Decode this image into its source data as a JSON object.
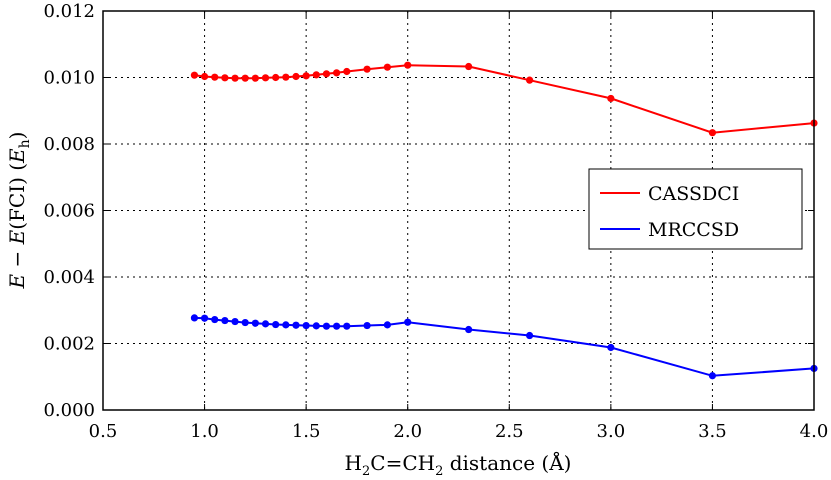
{
  "chart_data": {
    "type": "line",
    "title": "",
    "xlabel": "H₂C=CH₂ distance (Å)",
    "ylabel": "E − E(FCI) (Eₕ)",
    "xlim": [
      0.5,
      4.0
    ],
    "ylim": [
      0.0,
      0.012
    ],
    "xticks": [
      0.5,
      1.0,
      1.5,
      2.0,
      2.5,
      3.0,
      3.5,
      4.0
    ],
    "xtick_labels": [
      "0.5",
      "1.0",
      "1.5",
      "2.0",
      "2.5",
      "3.0",
      "3.5",
      "4.0"
    ],
    "yticks": [
      0.0,
      0.002,
      0.004,
      0.006,
      0.008,
      0.01,
      0.012
    ],
    "ytick_labels": [
      "0.000",
      "0.002",
      "0.004",
      "0.006",
      "0.008",
      "0.010",
      "0.012"
    ],
    "grid": true,
    "legend_position": "center-right",
    "x": [
      0.95,
      1.0,
      1.05,
      1.1,
      1.15,
      1.2,
      1.25,
      1.3,
      1.35,
      1.4,
      1.45,
      1.5,
      1.55,
      1.6,
      1.65,
      1.7,
      1.8,
      1.9,
      2.0,
      2.3,
      2.6,
      3.0,
      3.5,
      4.0
    ],
    "series": [
      {
        "name": "CASSDCI",
        "color": "#ff0000",
        "values": [
          0.01007,
          0.01003,
          0.01001,
          0.00999,
          0.00998,
          0.00998,
          0.00998,
          0.00999,
          0.01,
          0.01001,
          0.01003,
          0.01005,
          0.01008,
          0.01011,
          0.01014,
          0.01018,
          0.01025,
          0.01031,
          0.01037,
          0.01033,
          0.00992,
          0.00937,
          0.00834,
          0.00863
        ]
      },
      {
        "name": "MRCCSD",
        "color": "#0000ff",
        "values": [
          0.00277,
          0.00276,
          0.00272,
          0.00269,
          0.00266,
          0.00263,
          0.00261,
          0.00259,
          0.00257,
          0.00256,
          0.00255,
          0.00254,
          0.00253,
          0.00252,
          0.00252,
          0.00252,
          0.00254,
          0.00256,
          0.00264,
          0.00242,
          0.00224,
          0.00188,
          0.00103,
          0.00125
        ]
      }
    ]
  },
  "labels": {
    "ylabel_E1": "E",
    "ylabel_mid": " − ",
    "ylabel_E2": "E",
    "ylabel_fci": "(FCI) (",
    "ylabel_Eh": "E",
    "ylabel_h": "h",
    "ylabel_close": ")",
    "xlabel_h1": "H",
    "xlabel_sub1": "2",
    "xlabel_mid": "C=CH",
    "xlabel_sub2": "2",
    "xlabel_rest": " distance (Å)"
  }
}
